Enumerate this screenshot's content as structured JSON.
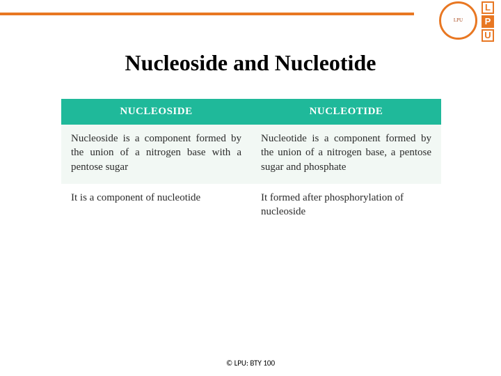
{
  "accent_color": "#e87722",
  "logo": {
    "seal_border_color": "#e87722",
    "seal_text": "LPU",
    "blocks": [
      {
        "letter": "L",
        "border": "#e87722",
        "bg": "#ffffff",
        "color": "#e87722"
      },
      {
        "letter": "P",
        "border": "#e87722",
        "bg": "#e87722",
        "color": "#ffffff"
      },
      {
        "letter": "U",
        "border": "#e87722",
        "bg": "#ffffff",
        "color": "#e87722"
      }
    ]
  },
  "title": "Nucleoside and Nucleotide",
  "table": {
    "header_bg": "#1fb99a",
    "header_color": "#ffffff",
    "row_colors": [
      "#f2f8f4",
      "#ffffff"
    ],
    "cell_color": "#2b2b2b",
    "columns": [
      "NUCLEOSIDE",
      "NUCLEOTIDE"
    ],
    "col_widths": [
      "50%",
      "50%"
    ],
    "rows": [
      [
        "Nucleoside is a component formed by the union of a nitrogen base with a pentose sugar",
        "Nucleotide is a component formed by the union of a nitrogen base, a pentose sugar and phosphate"
      ],
      [
        "It is a component of nucleotide",
        "It formed after phosphorylation of nucleoside"
      ]
    ]
  },
  "footer": "© LPU: BTY 100"
}
